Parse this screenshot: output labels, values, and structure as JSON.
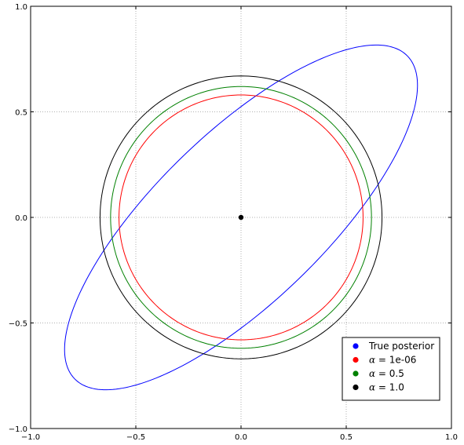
{
  "chart_data": {
    "type": "line",
    "title": "",
    "xlabel": "",
    "ylabel": "",
    "xlim": [
      -1.0,
      1.0
    ],
    "ylim": [
      -1.0,
      1.0
    ],
    "xticks": [
      "-1.0",
      "-0.5",
      "0.0",
      "0.5",
      "1.0"
    ],
    "yticks": [
      "-1.0",
      "-0.5",
      "0.0",
      "0.5",
      "1.0"
    ],
    "grid": true,
    "legend_position": "lower-right",
    "series": [
      {
        "name": "True posterior",
        "kind": "ellipse",
        "color": "#0000ff",
        "center": [
          0.0,
          0.0
        ],
        "semi_major": 1.1,
        "semi_minor": 0.4,
        "angle_deg": 44
      },
      {
        "name": "α = 1e-06",
        "legend_symbol": "α",
        "legend_value": "= 1e-06",
        "kind": "circle",
        "color": "#ff0000",
        "center": [
          0.0,
          0.0
        ],
        "radius": 0.58
      },
      {
        "name": "α = 0.5",
        "legend_symbol": "α",
        "legend_value": "= 0.5",
        "kind": "circle",
        "color": "#008000",
        "center": [
          0.0,
          0.0
        ],
        "radius": 0.62
      },
      {
        "name": "α = 1.0",
        "legend_symbol": "α",
        "legend_value": "= 1.0",
        "kind": "circle",
        "color": "#000000",
        "center": [
          0.0,
          0.0
        ],
        "radius": 0.67
      }
    ],
    "center_point": {
      "x": 0.0,
      "y": 0.0,
      "color": "#000000"
    }
  }
}
